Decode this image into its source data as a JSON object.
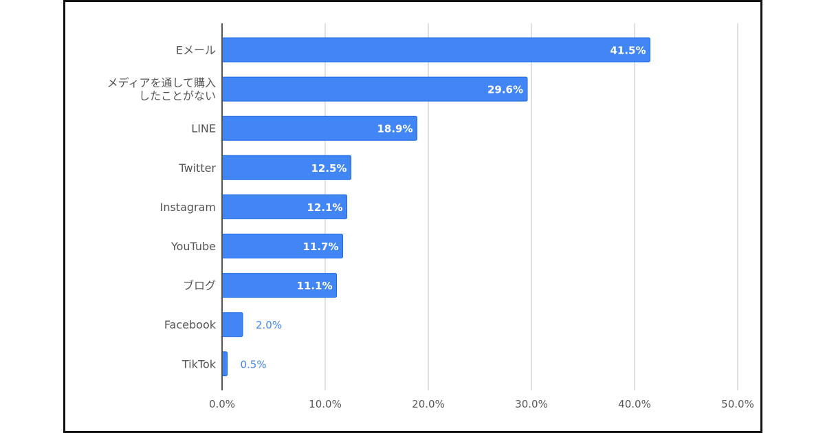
{
  "chart_data": {
    "type": "bar",
    "orientation": "horizontal",
    "categories": [
      "Eメール",
      "メディアを通して購入\nしたことがない",
      "LINE",
      "Twitter",
      "Instagram",
      "YouTube",
      "ブログ",
      "Facebook",
      "TikTok"
    ],
    "values": [
      41.5,
      29.6,
      18.9,
      12.5,
      12.1,
      11.7,
      11.1,
      2.0,
      0.5
    ],
    "data_labels": [
      "41.5%",
      "29.6%",
      "18.9%",
      "12.5%",
      "12.1%",
      "11.7%",
      "11.1%",
      "2.0%",
      "0.5%"
    ],
    "xlim": [
      0,
      50
    ],
    "xticks": [
      0,
      10,
      20,
      30,
      40,
      50
    ],
    "xtick_labels": [
      "0.0%",
      "10.0%",
      "20.0%",
      "30.0%",
      "40.0%",
      "50.0%"
    ],
    "grid": true,
    "title": "",
    "xlabel": "",
    "ylabel": "",
    "colors": {
      "bar": "#4285f4",
      "bar_edge": "#1a6ae8",
      "label_outside": "#4285f4",
      "grid": "#d6d6d6",
      "axis": "#555555",
      "text": "#555555"
    }
  }
}
